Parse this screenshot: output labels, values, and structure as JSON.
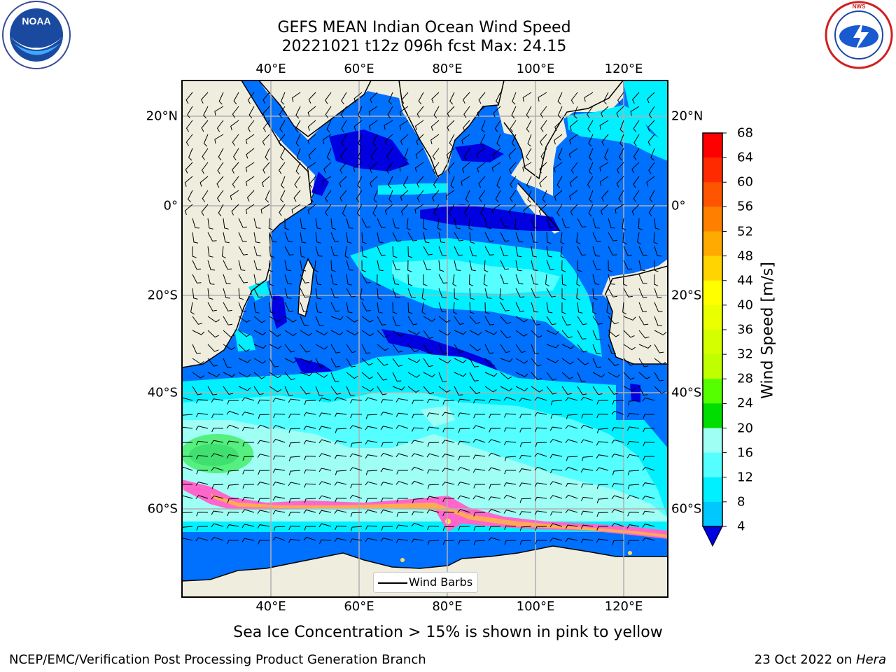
{
  "title": {
    "line1": "GEFS MEAN Indian Ocean Wind Speed",
    "line2": "20221021 t12z 096h fcst   Max: 24.15"
  },
  "logos": {
    "left": {
      "icon": "noaa-logo",
      "text": "NOAA"
    },
    "right": {
      "icon": "nws-logo",
      "text": "NATIONAL WEATHER SERVICE"
    }
  },
  "axes": {
    "lon_ticks": [
      "40°E",
      "60°E",
      "80°E",
      "100°E",
      "120°E"
    ],
    "lat_ticks_left": [
      "20°N",
      "0°",
      "20°S",
      "40°S",
      "60°S"
    ],
    "lat_ticks_right": [
      "20°N",
      "0°",
      "20°S",
      "40°S",
      "60°S"
    ]
  },
  "colorbar": {
    "label": "Wind Speed [m/s]",
    "ticks": [
      "68",
      "64",
      "60",
      "56",
      "52",
      "48",
      "44",
      "40",
      "36",
      "32",
      "28",
      "24",
      "20",
      "16",
      "12",
      "8",
      "4"
    ],
    "colors": [
      "#ff0000",
      "#ff2a00",
      "#ff5500",
      "#ff8000",
      "#ffaa00",
      "#ffd400",
      "#ffff00",
      "#eaff00",
      "#d4ff00",
      "#c0ff00",
      "#55ff00",
      "#00dd00",
      "#55f080",
      "#9ffff5",
      "#55ffff",
      "#00f0ff",
      "#00c8ff",
      "#0070ff"
    ],
    "under_color": "#0000e0"
  },
  "legend": {
    "label": "Wind Barbs"
  },
  "subtitle": "Sea Ice Concentration > 15% is shown in pink to yellow",
  "footer": {
    "left": "NCEP/EMC/Verification Post Processing Product Generation Branch",
    "right_date": "23 Oct 2022 on ",
    "right_host": "Hera"
  },
  "map": {
    "land_color": "#efedde",
    "ocean_colors": {
      "calm": "#0000e0",
      "light": "#0070ff",
      "moderate": "#00f0ff",
      "fresh": "#55ffff",
      "strong": "#9ffff5",
      "gale": "#55f080"
    },
    "sea_ice_colors": [
      "#ff66cc",
      "#ffaa55",
      "#ffdd55"
    ]
  }
}
